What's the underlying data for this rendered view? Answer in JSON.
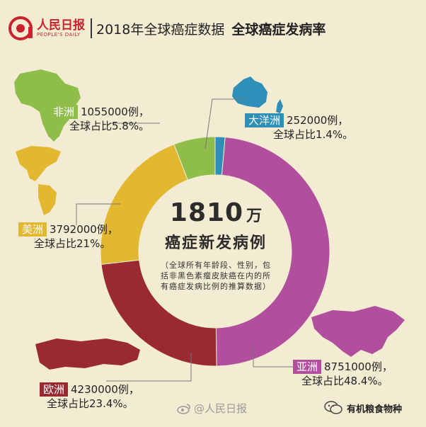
{
  "header": {
    "logo_cn": "人民日报",
    "logo_en": "PEOPLE'S DAILY",
    "title": "2018年全球癌症数据",
    "title_bold": "全球癌症发病率"
  },
  "colors": {
    "africa": "#8fbd4a",
    "oceania": "#2e8fb8",
    "americas": "#e2b830",
    "europe": "#9a2a32",
    "asia": "#b24e9e",
    "background": "#f4ecd2"
  },
  "chart_data": {
    "type": "pie",
    "title": "全球癌症发病率",
    "total_label": "1810",
    "total_unit": "万",
    "center_title": "癌症新发病例",
    "note": "（全球所有年龄段、性别，包括非黑色素瘤皮肤癌在内的所有癌症发病比例的推算数据）",
    "slices": [
      {
        "name": "大洋洲",
        "value": 252000,
        "count_label": "252000例，",
        "share_label": "全球占比1.4%。",
        "percent": 1.4,
        "color": "#2e8fb8"
      },
      {
        "name": "亚洲",
        "value": 8751000,
        "count_label": "8751000例，",
        "share_label": "全球占比48.4%。",
        "percent": 48.4,
        "color": "#b24e9e"
      },
      {
        "name": "欧洲",
        "value": 4230000,
        "count_label": "4230000例，",
        "share_label": "全球占比23.4%。",
        "percent": 23.4,
        "color": "#9a2a32"
      },
      {
        "name": "美洲",
        "value": 3792000,
        "count_label": "3792000例，",
        "share_label": "全球占比21%。",
        "percent": 21,
        "color": "#e2b830"
      },
      {
        "name": "非洲",
        "value": 1055000,
        "count_label": "1055000例，",
        "share_label": "全球占比5.8%。",
        "percent": 5.8,
        "color": "#8fbd4a"
      }
    ]
  },
  "watermark": {
    "text": "@人民日报"
  },
  "wechat": {
    "account": "有机粮食物种"
  }
}
